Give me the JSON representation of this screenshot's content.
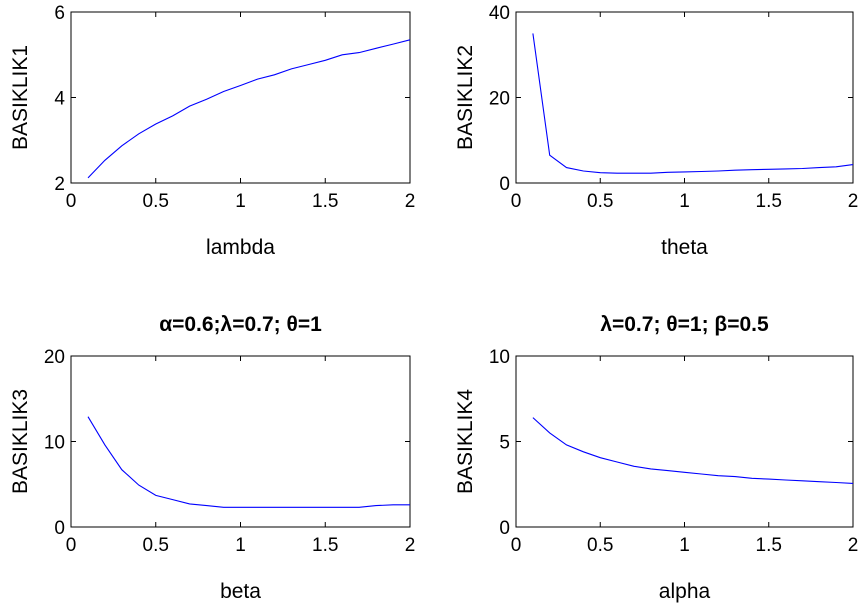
{
  "figure": {
    "background": "#ffffff",
    "series_color": "#0000ff"
  },
  "chart_data": [
    {
      "type": "line",
      "title": "",
      "xlabel": "lambda",
      "ylabel": "BASIKLIK1",
      "xlim": [
        0,
        2
      ],
      "ylim": [
        2,
        6
      ],
      "xticks": [
        0,
        0.5,
        1,
        1.5,
        2
      ],
      "xtick_labels": [
        "0",
        "0.5",
        "1",
        "1.5",
        "2"
      ],
      "yticks": [
        2,
        4,
        6
      ],
      "ytick_labels": [
        "2",
        "4",
        "6"
      ],
      "series": [
        {
          "x": [
            0.1,
            0.2,
            0.3,
            0.4,
            0.5,
            0.6,
            0.7,
            0.8,
            0.9,
            1.0,
            1.1,
            1.2,
            1.3,
            1.4,
            1.5,
            1.6,
            1.7,
            1.8,
            1.9,
            2.0
          ],
          "y": [
            2.12,
            2.53,
            2.87,
            3.15,
            3.38,
            3.57,
            3.8,
            3.96,
            4.14,
            4.28,
            4.43,
            4.53,
            4.67,
            4.77,
            4.87,
            5.0,
            5.05,
            5.15,
            5.25,
            5.35
          ]
        }
      ]
    },
    {
      "type": "line",
      "title": "",
      "xlabel": "theta",
      "ylabel": "BASIKLIK2",
      "xlim": [
        0,
        2
      ],
      "ylim": [
        0,
        40
      ],
      "xticks": [
        0,
        0.5,
        1,
        1.5,
        2
      ],
      "xtick_labels": [
        "0",
        "0.5",
        "1",
        "1.5",
        "2"
      ],
      "yticks": [
        0,
        20,
        40
      ],
      "ytick_labels": [
        "0",
        "20",
        "40"
      ],
      "series": [
        {
          "x": [
            0.1,
            0.2,
            0.3,
            0.4,
            0.5,
            0.6,
            0.7,
            0.8,
            0.9,
            1.0,
            1.1,
            1.2,
            1.3,
            1.4,
            1.5,
            1.6,
            1.7,
            1.8,
            1.9,
            2.0
          ],
          "y": [
            35.0,
            6.5,
            3.6,
            2.8,
            2.4,
            2.3,
            2.3,
            2.3,
            2.5,
            2.6,
            2.7,
            2.8,
            3.0,
            3.1,
            3.2,
            3.3,
            3.4,
            3.6,
            3.8,
            4.3
          ]
        }
      ]
    },
    {
      "type": "line",
      "title": "α=0.6;λ=0.7; θ=1",
      "xlabel": "beta",
      "ylabel": "BASIKLIK3",
      "xlim": [
        0,
        2
      ],
      "ylim": [
        0,
        20
      ],
      "xticks": [
        0,
        0.5,
        1,
        1.5,
        2
      ],
      "xtick_labels": [
        "0",
        "0.5",
        "1",
        "1.5",
        "2"
      ],
      "yticks": [
        0,
        10,
        20
      ],
      "ytick_labels": [
        "0",
        "10",
        "20"
      ],
      "series": [
        {
          "x": [
            0.1,
            0.2,
            0.3,
            0.4,
            0.5,
            0.6,
            0.7,
            0.8,
            0.9,
            1.0,
            1.1,
            1.2,
            1.3,
            1.4,
            1.5,
            1.6,
            1.7,
            1.8,
            1.9,
            2.0
          ],
          "y": [
            12.9,
            9.6,
            6.7,
            4.9,
            3.7,
            3.2,
            2.7,
            2.5,
            2.3,
            2.3,
            2.3,
            2.3,
            2.3,
            2.3,
            2.3,
            2.3,
            2.3,
            2.5,
            2.6,
            2.6
          ]
        }
      ]
    },
    {
      "type": "line",
      "title": "λ=0.7; θ=1; β=0.5",
      "xlabel": "alpha",
      "ylabel": "BASIKLIK4",
      "xlim": [
        0,
        2
      ],
      "ylim": [
        0,
        10
      ],
      "xticks": [
        0,
        0.5,
        1,
        1.5,
        2
      ],
      "xtick_labels": [
        "0",
        "0.5",
        "1",
        "1.5",
        "2"
      ],
      "yticks": [
        0,
        5,
        10
      ],
      "ytick_labels": [
        "0",
        "5",
        "10"
      ],
      "series": [
        {
          "x": [
            0.1,
            0.2,
            0.3,
            0.4,
            0.5,
            0.6,
            0.7,
            0.8,
            0.9,
            1.0,
            1.1,
            1.2,
            1.3,
            1.4,
            1.5,
            1.6,
            1.7,
            1.8,
            1.9,
            2.0
          ],
          "y": [
            6.4,
            5.5,
            4.8,
            4.4,
            4.05,
            3.8,
            3.55,
            3.4,
            3.3,
            3.2,
            3.1,
            3.0,
            2.95,
            2.85,
            2.8,
            2.75,
            2.7,
            2.65,
            2.6,
            2.55
          ]
        }
      ]
    }
  ]
}
